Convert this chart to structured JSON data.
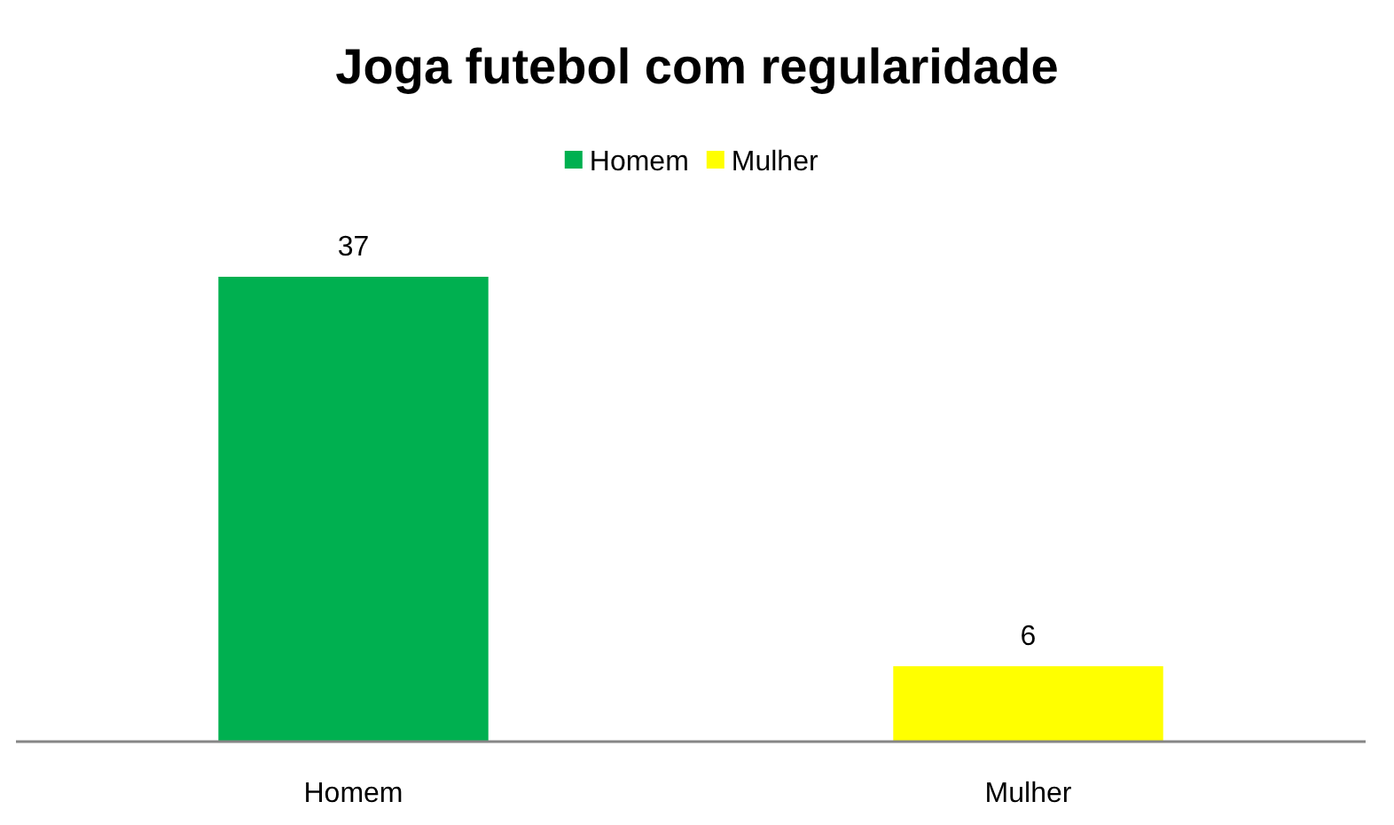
{
  "chart_data": {
    "type": "bar",
    "title": "Joga futebol com regularidade",
    "categories": [
      "Homem",
      "Mulher"
    ],
    "series": [
      {
        "name": "Homem",
        "color": "#00b050",
        "values": [
          37,
          null
        ]
      },
      {
        "name": "Mulher",
        "color": "#ffff00",
        "values": [
          null,
          6
        ]
      }
    ],
    "stacked": true,
    "data_labels": true,
    "legend": "top",
    "tick_labels": "x"
  }
}
